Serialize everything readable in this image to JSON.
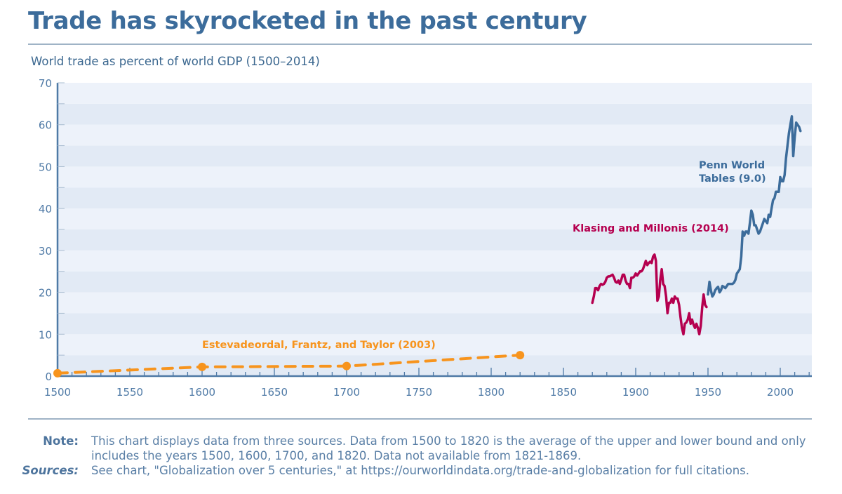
{
  "header": {
    "title": "Trade has skyrocketed in the past century",
    "subtitle": "World trade as percent of world GDP (1500–2014)"
  },
  "footer": {
    "note_label": "Note:",
    "note_text": "This chart displays data from three sources. Data from 1500 to 1820 is the average of the upper and lower bound and only includes the years 1500, 1600, 1700, and 1820. Data not available from 1821-1869.",
    "sources_label": "Sources:",
    "sources_text": "See chart, \"Globalization over 5 centuries,\" at https://ourworldindata.org/trade-and-globalization for full citations."
  },
  "colors": {
    "title": "#3c6c9b",
    "axis": "#4f7aa6",
    "band_dark": "#e2eaf5",
    "band_light": "#edf2fa",
    "estevadeordal": "#f7941d",
    "klasing": "#b5004f",
    "penn": "#3c6c9b"
  },
  "chart_data": {
    "type": "line",
    "title": "World trade as percent of world GDP (1500–2014)",
    "xlabel": "",
    "ylabel": "",
    "xlim": [
      1500,
      2020
    ],
    "ylim": [
      0,
      70
    ],
    "x_ticks": [
      1500,
      1550,
      1600,
      1650,
      1700,
      1750,
      1800,
      1850,
      1900,
      1950,
      2000
    ],
    "y_ticks": [
      0,
      10,
      20,
      30,
      40,
      50,
      60,
      70
    ],
    "grid": "horizontal alternating bands every 5",
    "legend": "inline labels",
    "series": [
      {
        "name": "Estevadeordal, Frantz, and Taylor (2003)",
        "style": "dashed with markers",
        "label_pos": [
          1600,
          7
        ],
        "points": [
          [
            1500,
            0.7
          ],
          [
            1600,
            2.2
          ],
          [
            1700,
            2.4
          ],
          [
            1820,
            5.0
          ]
        ]
      },
      {
        "name": "Klasing and Millonis (2014)",
        "style": "solid",
        "label_pos": [
          1870,
          34.5
        ],
        "points": [
          [
            1870,
            17.5
          ],
          [
            1871,
            19
          ],
          [
            1872,
            21
          ],
          [
            1873,
            21
          ],
          [
            1874,
            20.5
          ],
          [
            1875,
            21.5
          ],
          [
            1876,
            22
          ],
          [
            1877,
            21.8
          ],
          [
            1878,
            22
          ],
          [
            1879,
            22.5
          ],
          [
            1880,
            23.5
          ],
          [
            1881,
            23.8
          ],
          [
            1882,
            23.8
          ],
          [
            1883,
            24
          ],
          [
            1884,
            24.2
          ],
          [
            1885,
            23.5
          ],
          [
            1886,
            22.5
          ],
          [
            1887,
            22.3
          ],
          [
            1888,
            22.8
          ],
          [
            1889,
            22
          ],
          [
            1890,
            23
          ],
          [
            1891,
            24.2
          ],
          [
            1892,
            24.2
          ],
          [
            1893,
            22.8
          ],
          [
            1894,
            22
          ],
          [
            1895,
            22
          ],
          [
            1896,
            21
          ],
          [
            1897,
            23.5
          ],
          [
            1898,
            23.5
          ],
          [
            1899,
            23.8
          ],
          [
            1900,
            24.5
          ],
          [
            1901,
            24
          ],
          [
            1902,
            24.5
          ],
          [
            1903,
            25
          ],
          [
            1904,
            25
          ],
          [
            1905,
            25.5
          ],
          [
            1906,
            26.5
          ],
          [
            1907,
            27.5
          ],
          [
            1908,
            26.5
          ],
          [
            1909,
            27
          ],
          [
            1910,
            27.3
          ],
          [
            1911,
            27
          ],
          [
            1912,
            28.5
          ],
          [
            1913,
            29
          ],
          [
            1914,
            27.5
          ],
          [
            1915,
            18
          ],
          [
            1916,
            19
          ],
          [
            1917,
            23
          ],
          [
            1918,
            25.5
          ],
          [
            1919,
            22
          ],
          [
            1920,
            21.5
          ],
          [
            1921,
            19
          ],
          [
            1922,
            15
          ],
          [
            1923,
            17.5
          ],
          [
            1924,
            17.5
          ],
          [
            1925,
            18.5
          ],
          [
            1926,
            17.5
          ],
          [
            1927,
            19
          ],
          [
            1928,
            18.5
          ],
          [
            1929,
            18.5
          ],
          [
            1930,
            17
          ],
          [
            1931,
            14
          ],
          [
            1932,
            11.5
          ],
          [
            1933,
            10
          ],
          [
            1934,
            12.5
          ],
          [
            1935,
            12.8
          ],
          [
            1936,
            13.5
          ],
          [
            1937,
            15
          ],
          [
            1938,
            12.5
          ],
          [
            1939,
            13.5
          ],
          [
            1940,
            12.3
          ],
          [
            1941,
            11.5
          ],
          [
            1942,
            12.5
          ],
          [
            1943,
            11.5
          ],
          [
            1944,
            10
          ],
          [
            1945,
            12
          ],
          [
            1946,
            16.5
          ],
          [
            1947,
            19.5
          ],
          [
            1948,
            17
          ],
          [
            1949,
            16.5
          ]
        ]
      },
      {
        "name": "Penn World Tables (9.0)",
        "style": "solid",
        "label_pos": [
          1985,
          48
        ],
        "points": [
          [
            1950,
            19.5
          ],
          [
            1951,
            22.5
          ],
          [
            1952,
            20.5
          ],
          [
            1953,
            19
          ],
          [
            1954,
            19.5
          ],
          [
            1955,
            20.5
          ],
          [
            1956,
            21
          ],
          [
            1957,
            21.3
          ],
          [
            1958,
            20
          ],
          [
            1959,
            20.5
          ],
          [
            1960,
            21.5
          ],
          [
            1961,
            21.3
          ],
          [
            1962,
            21
          ],
          [
            1963,
            21.5
          ],
          [
            1964,
            22
          ],
          [
            1965,
            22
          ],
          [
            1966,
            22
          ],
          [
            1967,
            22
          ],
          [
            1968,
            22.3
          ],
          [
            1969,
            23
          ],
          [
            1970,
            24.5
          ],
          [
            1971,
            25
          ],
          [
            1972,
            25.5
          ],
          [
            1973,
            28.5
          ],
          [
            1974,
            34.5
          ],
          [
            1975,
            33.5
          ],
          [
            1976,
            34.5
          ],
          [
            1977,
            34.5
          ],
          [
            1978,
            34
          ],
          [
            1979,
            36.5
          ],
          [
            1980,
            39.5
          ],
          [
            1981,
            38.5
          ],
          [
            1982,
            36
          ],
          [
            1983,
            36
          ],
          [
            1984,
            35
          ],
          [
            1985,
            34
          ],
          [
            1986,
            34.5
          ],
          [
            1987,
            35.5
          ],
          [
            1988,
            36.5
          ],
          [
            1989,
            37.5
          ],
          [
            1990,
            37
          ],
          [
            1991,
            36.5
          ],
          [
            1992,
            38.5
          ],
          [
            1993,
            38
          ],
          [
            1994,
            40
          ],
          [
            1995,
            42
          ],
          [
            1996,
            42.5
          ],
          [
            1997,
            44
          ],
          [
            1998,
            44
          ],
          [
            1999,
            44
          ],
          [
            2000,
            47.5
          ],
          [
            2001,
            46.5
          ],
          [
            2002,
            46.5
          ],
          [
            2003,
            48
          ],
          [
            2004,
            52
          ],
          [
            2005,
            55
          ],
          [
            2006,
            58
          ],
          [
            2007,
            60
          ],
          [
            2008,
            62
          ],
          [
            2009,
            52.5
          ],
          [
            2010,
            57
          ],
          [
            2011,
            60.5
          ],
          [
            2012,
            60
          ],
          [
            2013,
            59.5
          ],
          [
            2014,
            58.5
          ]
        ]
      }
    ]
  }
}
